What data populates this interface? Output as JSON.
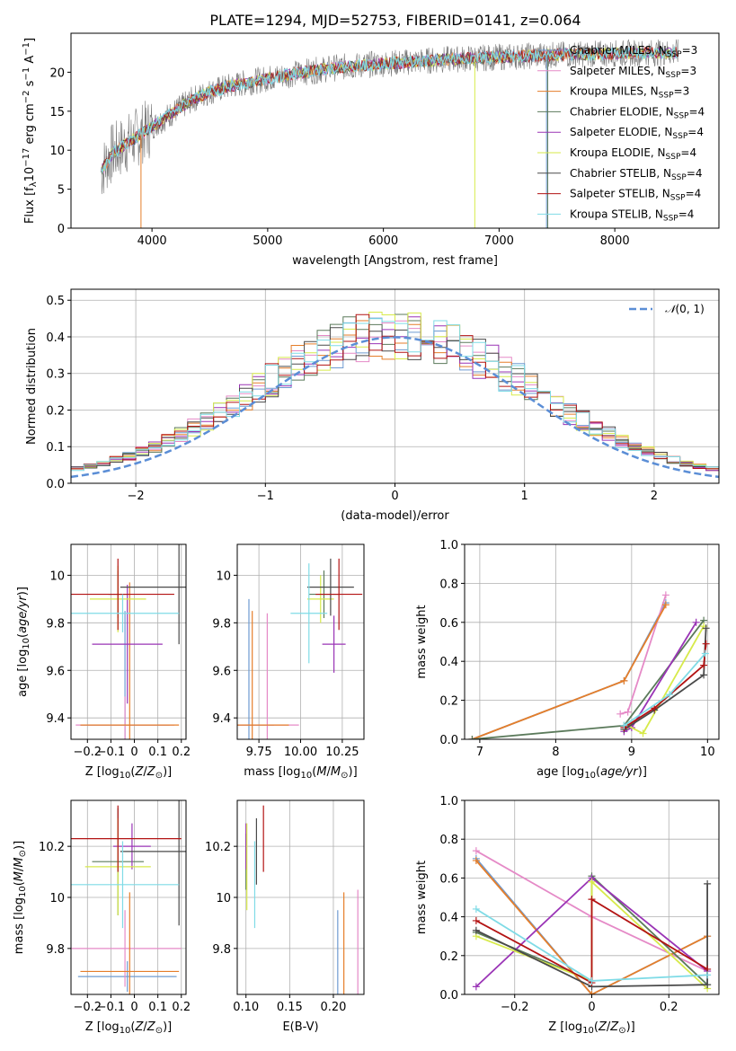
{
  "figure": {
    "title": "PLATE=1294, MJD=52753, FIBERID=0141, z=0.064"
  },
  "legend_models": [
    {
      "imf": "Chabrier",
      "lib": "MILES",
      "n": "3",
      "color": "#6f9bd1"
    },
    {
      "imf": "Salpeter",
      "lib": "MILES",
      "n": "3",
      "color": "#e58ac7"
    },
    {
      "imf": "Kroupa",
      "lib": "MILES",
      "n": "3",
      "color": "#e57e2a"
    },
    {
      "imf": "Chabrier",
      "lib": "ELODIE",
      "n": "4",
      "color": "#5b7a5b"
    },
    {
      "imf": "Salpeter",
      "lib": "ELODIE",
      "n": "4",
      "color": "#9a34b6"
    },
    {
      "imf": "Kroupa",
      "lib": "ELODIE",
      "n": "4",
      "color": "#d7ea4a"
    },
    {
      "imf": "Chabrier",
      "lib": "STELIB",
      "n": "4",
      "color": "#4a4a4a"
    },
    {
      "imf": "Salpeter",
      "lib": "STELIB",
      "n": "4",
      "color": "#b31313"
    },
    {
      "imf": "Kroupa",
      "lib": "STELIB",
      "n": "4",
      "color": "#7fdbe6"
    }
  ],
  "legend_ssp_sub": "SSP",
  "chart_data": [
    {
      "id": "spectrum",
      "type": "line",
      "title": "PLATE=1294, MJD=52753, FIBERID=0141, z=0.064",
      "xlabel": "wavelength [Angstrom, rest frame]",
      "ylabel": "Flux [f_λ 10^-17 erg cm^-2 s^-1 A^-1]",
      "xlim": [
        3300,
        8900
      ],
      "ylim": [
        0,
        25
      ],
      "xticks": [
        4000,
        5000,
        6000,
        7000,
        8000
      ],
      "yticks": [
        0,
        5,
        10,
        15,
        20
      ],
      "continuum": {
        "x": [
          3550,
          3650,
          3750,
          3850,
          3950,
          4050,
          4150,
          4250,
          4350,
          4500,
          4700,
          5000,
          5300,
          5600,
          5900,
          6200,
          6500,
          6800,
          7100,
          7400,
          7700,
          8000,
          8300,
          8500
        ],
        "y": [
          7.0,
          9.5,
          10.5,
          11.5,
          12.5,
          13.5,
          14.5,
          15.5,
          16.5,
          17.5,
          18.3,
          19.2,
          20.0,
          20.6,
          21.0,
          21.3,
          21.6,
          21.8,
          22.0,
          22.2,
          22.3,
          22.4,
          22.5,
          22.5
        ]
      },
      "grid": false
    },
    {
      "id": "residuals",
      "type": "histogram",
      "xlabel": "(data-model)/error",
      "ylabel": "Normed distribution",
      "xlim": [
        -2.5,
        2.5
      ],
      "ylim": [
        0,
        0.53
      ],
      "xticks": [
        -2,
        -1,
        0,
        1,
        2
      ],
      "yticks": [
        0.0,
        0.1,
        0.2,
        0.3,
        0.4,
        0.5
      ],
      "bin_width": 0.1,
      "reference_curve": {
        "name": "N(0,1)",
        "mean": 0,
        "sigma": 1,
        "color": "#5b8ed6"
      },
      "grid": true
    },
    {
      "id": "age-vs-Z",
      "type": "errorbar",
      "xlabel": "Z [log10(Z/Z⊙)]",
      "ylabel": "age [log10(age/yr)]",
      "xlim": [
        -0.27,
        0.22
      ],
      "ylim": [
        9.31,
        10.13
      ],
      "xticks": [
        -0.2,
        -0.1,
        0.0,
        0.1,
        0.2
      ],
      "yticks": [
        9.4,
        9.6,
        9.8,
        10.0
      ],
      "points": [
        {
          "x": -0.04,
          "y": 9.37,
          "xerr": 0.19,
          "yerr": 0.48,
          "model": 0
        },
        {
          "x": -0.04,
          "y": 9.37,
          "xerr": 0.21,
          "yerr": 0.12,
          "model": 1
        },
        {
          "x": -0.02,
          "y": 9.37,
          "xerr": 0.21,
          "yerr": 0.6,
          "model": 2
        },
        {
          "x": -0.07,
          "y": 9.92,
          "xerr": 0.04,
          "yerr": 0.1,
          "model": 3
        },
        {
          "x": -0.03,
          "y": 9.71,
          "xerr": 0.15,
          "yerr": 0.25,
          "model": 4
        },
        {
          "x": -0.07,
          "y": 9.9,
          "xerr": 0.12,
          "yerr": 0.14,
          "model": 5
        },
        {
          "x": 0.19,
          "y": 9.95,
          "xerr": 0.25,
          "yerr": 0.24,
          "model": 6
        },
        {
          "x": -0.07,
          "y": 9.92,
          "xerr": 0.24,
          "yerr": 0.15,
          "model": 7
        },
        {
          "x": -0.05,
          "y": 9.84,
          "xerr": 0.24,
          "yerr": 0.08,
          "model": 8
        }
      ],
      "grid": true
    },
    {
      "id": "age-vs-mass",
      "type": "errorbar",
      "xlabel": "mass [log10(M/M⊙)]",
      "ylabel": "",
      "xlim": [
        9.62,
        10.38
      ],
      "ylim": [
        9.31,
        10.13
      ],
      "xticks": [
        9.75,
        10.0,
        10.25
      ],
      "yticks": [
        9.4,
        9.6,
        9.8,
        10.0
      ],
      "points": [
        {
          "x": 9.69,
          "y": 9.37,
          "xerr": 0.15,
          "yerr": 0.53,
          "model": 0
        },
        {
          "x": 9.8,
          "y": 9.37,
          "xerr": 0.19,
          "yerr": 0.47,
          "model": 1
        },
        {
          "x": 9.71,
          "y": 9.37,
          "xerr": 0.22,
          "yerr": 0.48,
          "model": 2
        },
        {
          "x": 10.14,
          "y": 9.92,
          "xerr": 0.09,
          "yerr": 0.1,
          "model": 3
        },
        {
          "x": 10.2,
          "y": 9.71,
          "xerr": 0.07,
          "yerr": 0.12,
          "model": 4
        },
        {
          "x": 10.12,
          "y": 9.9,
          "xerr": 0.08,
          "yerr": 0.1,
          "model": 5
        },
        {
          "x": 10.18,
          "y": 9.95,
          "xerr": 0.14,
          "yerr": 0.12,
          "model": 6
        },
        {
          "x": 10.23,
          "y": 9.92,
          "xerr": 0.14,
          "yerr": 0.15,
          "model": 7
        },
        {
          "x": 10.05,
          "y": 9.84,
          "xerr": 0.11,
          "yerr": 0.21,
          "model": 8
        }
      ],
      "grid": true
    },
    {
      "id": "weight-vs-age",
      "type": "line",
      "xlabel": "age [log10(age/yr)]",
      "ylabel": "mass weight",
      "xlim": [
        6.8,
        10.15
      ],
      "ylim": [
        0,
        1.0
      ],
      "xticks": [
        7,
        8,
        9,
        10
      ],
      "yticks": [
        0.0,
        0.2,
        0.4,
        0.6,
        0.8,
        1.0
      ],
      "series": [
        {
          "model": 0,
          "x": [
            6.9,
            8.9,
            9.45
          ],
          "y": [
            0.0,
            0.3,
            0.7
          ]
        },
        {
          "model": 1,
          "x": [
            8.85,
            8.95,
            9.45
          ],
          "y": [
            0.13,
            0.14,
            0.74
          ]
        },
        {
          "model": 2,
          "x": [
            6.9,
            8.9,
            9.45
          ],
          "y": [
            0.0,
            0.3,
            0.69
          ]
        },
        {
          "model": 3,
          "x": [
            6.9,
            8.9,
            9.95
          ],
          "y": [
            0.0,
            0.07,
            0.61
          ]
        },
        {
          "model": 4,
          "x": [
            8.9,
            9.0,
            9.85
          ],
          "y": [
            0.04,
            0.06,
            0.6
          ]
        },
        {
          "model": 5,
          "x": [
            8.95,
            9.15,
            9.95
          ],
          "y": [
            0.07,
            0.03,
            0.58
          ]
        },
        {
          "model": 6,
          "x": [
            8.9,
            9.3,
            9.95,
            9.98
          ],
          "y": [
            0.05,
            0.15,
            0.33,
            0.57
          ]
        },
        {
          "model": 7,
          "x": [
            8.9,
            9.3,
            9.95,
            9.98
          ],
          "y": [
            0.06,
            0.16,
            0.38,
            0.49
          ]
        },
        {
          "model": 8,
          "x": [
            8.9,
            9.5,
            9.97
          ],
          "y": [
            0.07,
            0.23,
            0.44
          ]
        }
      ],
      "grid": true
    },
    {
      "id": "mass-vs-Z",
      "type": "errorbar",
      "xlabel": "Z [log10(Z/Z⊙)]",
      "ylabel": "mass [log10(M/M⊙)]",
      "xlim": [
        -0.27,
        0.22
      ],
      "ylim": [
        9.62,
        10.38
      ],
      "xticks": [
        -0.2,
        -0.1,
        0.0,
        0.1,
        0.2
      ],
      "yticks": [
        9.8,
        10.0,
        10.2
      ],
      "points": [
        {
          "x": -0.03,
          "y": 9.69,
          "xerr": 0.21,
          "yerr": 0.06,
          "model": 0
        },
        {
          "x": -0.04,
          "y": 9.8,
          "xerr": 0.24,
          "yerr": 0.15,
          "model": 1
        },
        {
          "x": -0.02,
          "y": 9.71,
          "xerr": 0.21,
          "yerr": 0.31,
          "model": 2
        },
        {
          "x": -0.07,
          "y": 10.14,
          "xerr": 0.11,
          "yerr": 0.21,
          "model": 3
        },
        {
          "x": -0.01,
          "y": 10.2,
          "xerr": 0.08,
          "yerr": 0.09,
          "model": 4
        },
        {
          "x": -0.07,
          "y": 10.12,
          "xerr": 0.14,
          "yerr": 0.19,
          "model": 5
        },
        {
          "x": 0.19,
          "y": 10.18,
          "xerr": 0.25,
          "yerr": 0.29,
          "model": 6
        },
        {
          "x": -0.07,
          "y": 10.23,
          "xerr": 0.27,
          "yerr": 0.13,
          "model": 7
        },
        {
          "x": -0.05,
          "y": 10.05,
          "xerr": 0.24,
          "yerr": 0.17,
          "model": 8
        }
      ],
      "grid": true
    },
    {
      "id": "mass-vs-ebv",
      "type": "errorbar",
      "xlabel": "E(B-V)",
      "ylabel": "",
      "xlim": [
        0.09,
        0.235
      ],
      "ylim": [
        9.62,
        10.38
      ],
      "xticks": [
        0.1,
        0.15,
        0.2
      ],
      "yticks": [
        9.8,
        10.0,
        10.2
      ],
      "points": [
        {
          "x": 0.205,
          "y": 9.69,
          "xerr": 0,
          "yerr": 0.26,
          "model": 0
        },
        {
          "x": 0.228,
          "y": 9.8,
          "xerr": 0,
          "yerr": 0.23,
          "model": 1
        },
        {
          "x": 0.212,
          "y": 9.71,
          "xerr": 0,
          "yerr": 0.31,
          "model": 2
        },
        {
          "x": 0.1,
          "y": 10.14,
          "xerr": 0,
          "yerr": 0.11,
          "model": 3
        },
        {
          "x": 0.1,
          "y": 10.2,
          "xerr": 0,
          "yerr": 0.09,
          "model": 4
        },
        {
          "x": 0.101,
          "y": 10.12,
          "xerr": 0,
          "yerr": 0.17,
          "model": 5
        },
        {
          "x": 0.112,
          "y": 10.18,
          "xerr": 0,
          "yerr": 0.13,
          "model": 6
        },
        {
          "x": 0.12,
          "y": 10.23,
          "xerr": 0,
          "yerr": 0.13,
          "model": 7
        },
        {
          "x": 0.11,
          "y": 10.05,
          "xerr": 0,
          "yerr": 0.17,
          "model": 8
        }
      ],
      "grid": true
    },
    {
      "id": "weight-vs-Z",
      "type": "line",
      "xlabel": "Z [log10(Z/Z⊙)]",
      "ylabel": "mass weight",
      "xlim": [
        -0.33,
        0.33
      ],
      "ylim": [
        0,
        1.0
      ],
      "xticks": [
        -0.2,
        0.0,
        0.2
      ],
      "yticks": [
        0.0,
        0.2,
        0.4,
        0.6,
        0.8,
        1.0
      ],
      "series": [
        {
          "model": 0,
          "x": [
            -0.3,
            0.0,
            0.3
          ],
          "y": [
            0.7,
            0.0,
            0.3
          ]
        },
        {
          "model": 1,
          "x": [
            -0.3,
            0.0,
            0.3
          ],
          "y": [
            0.74,
            0.4,
            0.12
          ]
        },
        {
          "model": 2,
          "x": [
            -0.3,
            0.0,
            0.3
          ],
          "y": [
            0.69,
            0.0,
            0.3
          ]
        },
        {
          "model": 3,
          "x": [
            -0.3,
            0.0,
            0.0,
            0.3
          ],
          "y": [
            0.32,
            0.07,
            0.61,
            0.05
          ]
        },
        {
          "model": 4,
          "x": [
            -0.3,
            0.0,
            0.3
          ],
          "y": [
            0.04,
            0.6,
            0.12
          ]
        },
        {
          "model": 5,
          "x": [
            -0.3,
            0.0,
            0.0,
            0.3
          ],
          "y": [
            0.3,
            0.07,
            0.58,
            0.03
          ]
        },
        {
          "model": 6,
          "x": [
            -0.3,
            0.0,
            0.3,
            0.3
          ],
          "y": [
            0.33,
            0.04,
            0.05,
            0.57
          ]
        },
        {
          "model": 7,
          "x": [
            -0.3,
            0.0,
            0.0,
            0.3
          ],
          "y": [
            0.38,
            0.06,
            0.49,
            0.13
          ]
        },
        {
          "model": 8,
          "x": [
            -0.3,
            0.0,
            0.3
          ],
          "y": [
            0.44,
            0.07,
            0.1
          ]
        }
      ],
      "grid": true
    }
  ]
}
